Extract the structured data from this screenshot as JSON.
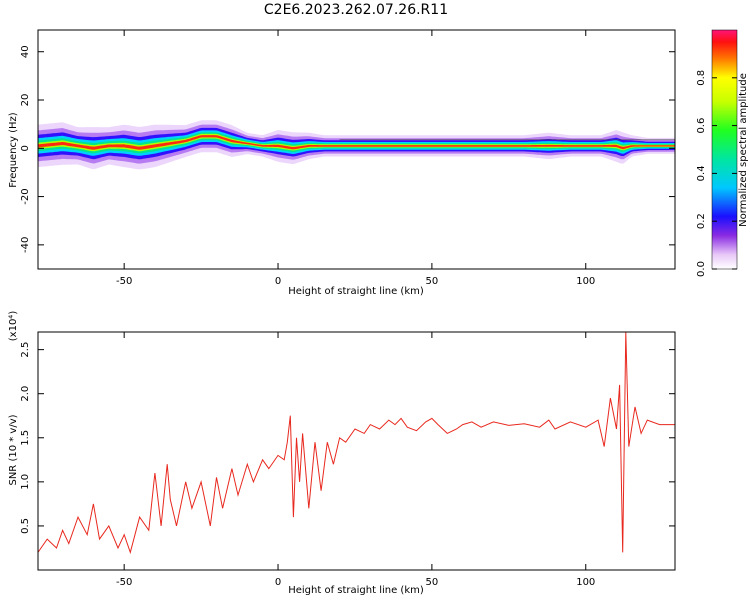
{
  "title": "C2E6.2023.262.07.26.R11",
  "chart_data": [
    {
      "type": "heatmap",
      "xlabel": "Height of straight line (km)",
      "ylabel": "Frequency (Hz)",
      "xlim": [
        -78,
        129
      ],
      "ylim": [
        -50,
        49
      ],
      "xticks": [
        -50,
        0,
        50,
        100
      ],
      "xtick_labels": [
        "-50",
        "0",
        "50",
        "100"
      ],
      "yticks": [
        -40,
        -20,
        0,
        20,
        40
      ],
      "ytick_labels": [
        "-40",
        "-20",
        "0",
        "20",
        "40"
      ],
      "colorbar": {
        "label": "Normalized spectral amplitude",
        "range": [
          0,
          1
        ],
        "ticks": [
          0.0,
          0.2,
          0.4,
          0.6,
          0.8
        ],
        "tick_labels": [
          "0.0",
          "0.2",
          "0.4",
          "0.6",
          "0.8"
        ]
      },
      "ridge": {
        "x": [
          -78,
          -70,
          -65,
          -60,
          -55,
          -50,
          -45,
          -40,
          -35,
          -30,
          -25,
          -20,
          -15,
          -10,
          -5,
          0,
          5,
          10,
          15,
          20,
          30,
          40,
          50,
          60,
          70,
          80,
          88,
          95,
          100,
          105,
          110,
          112,
          115,
          120,
          129
        ],
        "freq": [
          1,
          2,
          1,
          0,
          1,
          1,
          0,
          1,
          2,
          3,
          5,
          5,
          3,
          2,
          1,
          1,
          0,
          1,
          1,
          1,
          1,
          1,
          1,
          1,
          1,
          1,
          1,
          1,
          1,
          1,
          1,
          0,
          1,
          1,
          1
        ],
        "halfwidth": [
          4,
          4,
          3.5,
          4,
          3.5,
          4,
          4,
          4,
          3.5,
          3,
          3,
          3,
          3,
          2,
          2,
          3,
          3,
          2.5,
          2,
          2,
          2,
          2,
          2,
          2,
          2,
          2,
          2.5,
          2,
          2,
          2,
          3,
          3,
          2,
          1.5,
          1.5
        ]
      }
    },
    {
      "type": "line",
      "xlabel": "Height of straight line (km)",
      "ylabel": "SNR (10 * v/v)",
      "y_multiplier": "(x10⁴)",
      "xlim": [
        -78,
        129
      ],
      "ylim": [
        0,
        2.7
      ],
      "xticks": [
        -50,
        0,
        50,
        100
      ],
      "xtick_labels": [
        "-50",
        "0",
        "50",
        "100"
      ],
      "yticks": [
        0.5,
        1.0,
        1.5,
        2.0,
        2.5
      ],
      "ytick_labels": [
        "0.5",
        "1.0",
        "1.5",
        "2.0",
        "2.5"
      ],
      "series": [
        {
          "color": "#e8281e",
          "x": [
            -78,
            -75,
            -72,
            -70,
            -68,
            -65,
            -62,
            -60,
            -58,
            -55,
            -52,
            -50,
            -48,
            -45,
            -42,
            -40,
            -38,
            -36,
            -35,
            -33,
            -30,
            -28,
            -25,
            -22,
            -20,
            -18,
            -15,
            -13,
            -10,
            -8,
            -5,
            -3,
            0,
            2,
            3,
            4,
            5,
            6,
            7,
            8,
            10,
            12,
            14,
            16,
            18,
            20,
            22,
            25,
            28,
            30,
            33,
            36,
            38,
            40,
            42,
            45,
            48,
            50,
            52,
            55,
            58,
            60,
            63,
            66,
            70,
            75,
            80,
            85,
            88,
            90,
            95,
            100,
            104,
            106,
            108,
            110,
            111,
            112,
            113,
            114,
            116,
            118,
            120,
            124,
            129
          ],
          "y": [
            0.2,
            0.35,
            0.25,
            0.45,
            0.3,
            0.6,
            0.4,
            0.75,
            0.35,
            0.5,
            0.25,
            0.4,
            0.2,
            0.6,
            0.45,
            1.1,
            0.5,
            1.2,
            0.8,
            0.5,
            1.0,
            0.7,
            1.0,
            0.5,
            1.05,
            0.7,
            1.15,
            0.85,
            1.2,
            1.0,
            1.25,
            1.15,
            1.3,
            1.25,
            1.45,
            1.75,
            0.6,
            1.5,
            1.0,
            1.55,
            0.7,
            1.45,
            0.9,
            1.45,
            1.2,
            1.5,
            1.45,
            1.6,
            1.55,
            1.65,
            1.6,
            1.7,
            1.65,
            1.72,
            1.62,
            1.58,
            1.68,
            1.72,
            1.65,
            1.55,
            1.6,
            1.65,
            1.68,
            1.62,
            1.68,
            1.64,
            1.66,
            1.62,
            1.7,
            1.6,
            1.68,
            1.62,
            1.7,
            1.4,
            1.95,
            1.6,
            2.1,
            0.2,
            2.7,
            1.4,
            1.85,
            1.55,
            1.7,
            1.65,
            1.65
          ]
        }
      ]
    }
  ]
}
